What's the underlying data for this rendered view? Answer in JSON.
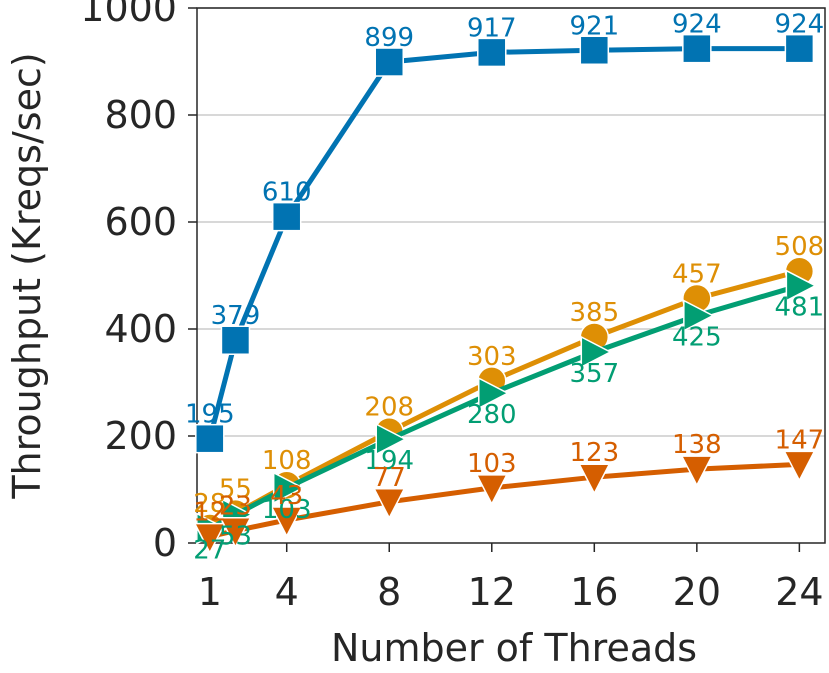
{
  "chart_data": {
    "type": "line",
    "title": "",
    "xlabel": "Number of Threads",
    "ylabel": "Throughput (Kreqs/sec)",
    "x_ticks": [
      "1",
      "4",
      "8",
      "12",
      "16",
      "20",
      "24"
    ],
    "y_ticks": [
      "0",
      "200",
      "400",
      "600",
      "800",
      "1000"
    ],
    "xlim": [
      0.5,
      25
    ],
    "ylim": [
      0,
      1000
    ],
    "grid": "horizontal",
    "legend": "none",
    "series": [
      {
        "color": "#0173b2",
        "marker": "square",
        "x": [
          1,
          2,
          4,
          8,
          12,
          16,
          20,
          24
        ],
        "y": [
          195,
          379,
          610,
          899,
          917,
          921,
          924,
          924
        ],
        "labels": [
          "195",
          "379",
          "610",
          "899",
          "917",
          "921",
          "924",
          "924"
        ]
      },
      {
        "color": "#de8f05",
        "marker": "circle",
        "x": [
          1,
          2,
          4,
          8,
          12,
          16,
          20,
          24
        ],
        "y": [
          28,
          55,
          108,
          208,
          303,
          385,
          457,
          508
        ],
        "labels": [
          "28",
          "55",
          "108",
          "208",
          "303",
          "385",
          "457",
          "508"
        ]
      },
      {
        "color": "#029e73",
        "marker": "triangle-right",
        "x": [
          1,
          2,
          4,
          8,
          12,
          16,
          20,
          24
        ],
        "y": [
          27,
          53,
          103,
          194,
          280,
          357,
          425,
          481
        ],
        "labels": [
          "27",
          "53",
          "103",
          "194",
          "280",
          "357",
          "425",
          "481"
        ]
      },
      {
        "color": "#d55e00",
        "marker": "triangle-down",
        "x": [
          1,
          2,
          4,
          8,
          12,
          16,
          20,
          24
        ],
        "y": [
          12,
          23,
          43,
          77,
          103,
          123,
          138,
          147
        ],
        "labels": [
          "12",
          "23",
          "43",
          "77",
          "103",
          "123",
          "138",
          "147"
        ]
      }
    ]
  }
}
